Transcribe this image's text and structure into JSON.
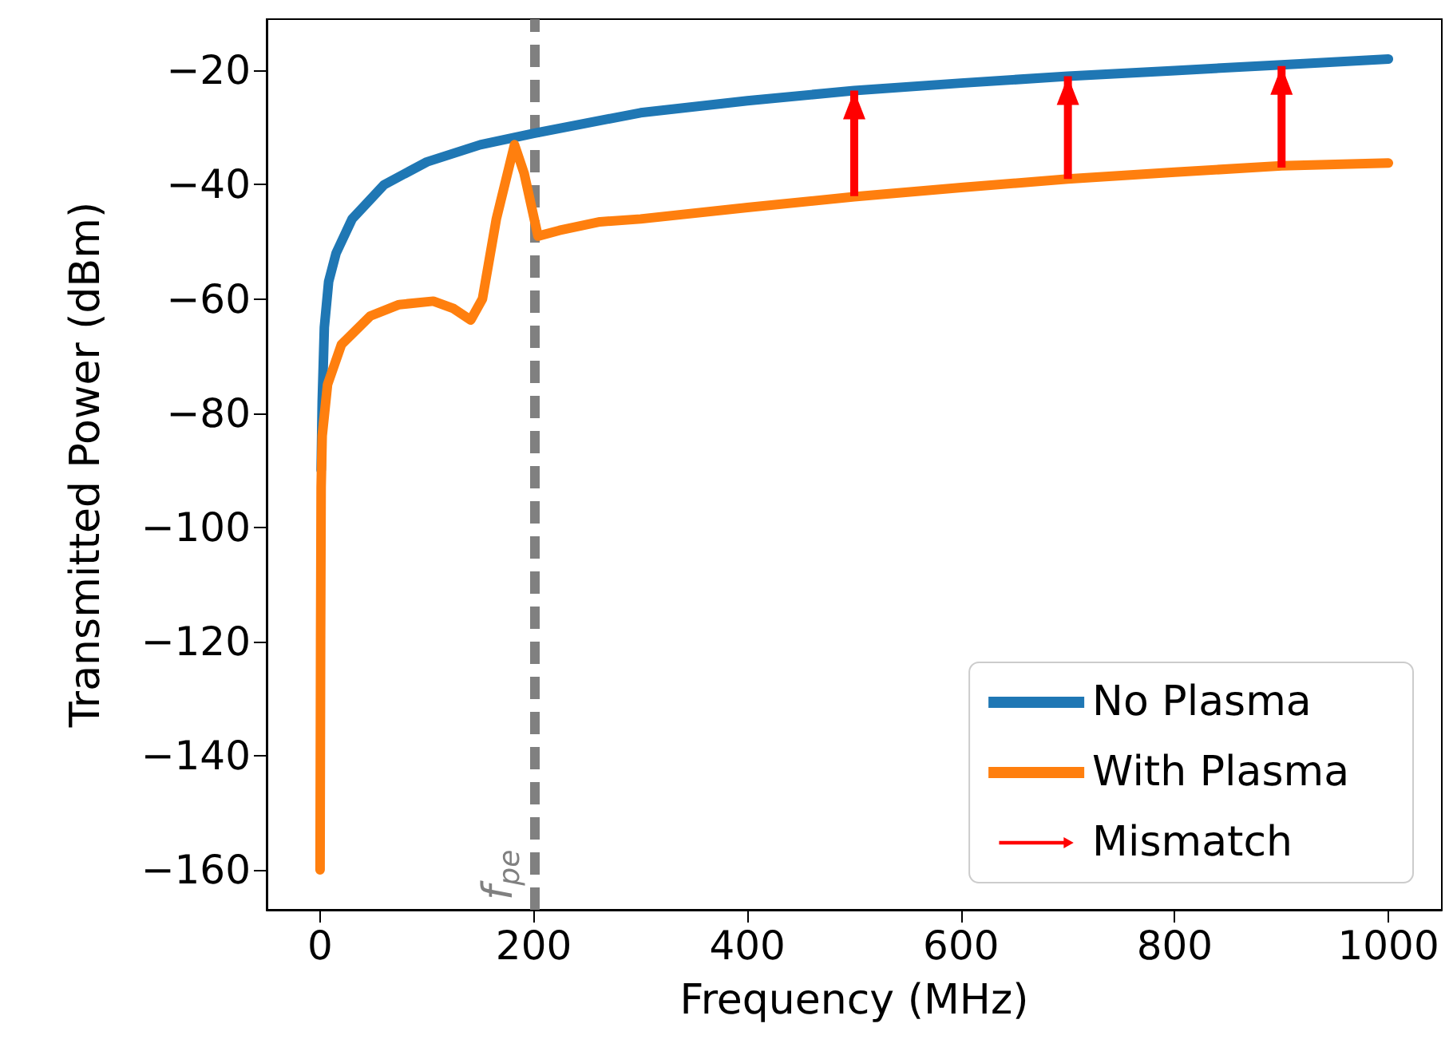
{
  "chart_data": {
    "type": "line",
    "xlabel": "Frequency (MHz)",
    "ylabel": "Transmitted Power (dBm)",
    "xlim": [
      -50,
      1050
    ],
    "xticks": [
      0,
      200,
      400,
      600,
      800,
      1000
    ],
    "ylim": [
      -167,
      -11
    ],
    "yticks": [
      -160,
      -140,
      -120,
      -100,
      -80,
      -60,
      -40,
      -20
    ],
    "grid": false,
    "legend": "bottom right",
    "line_style": "solid",
    "marker": "none",
    "ref_lines": [
      {
        "axis": "x",
        "value": 200,
        "label": "f$_{pe}$",
        "color": "#808080",
        "line_style": "dashed"
      }
    ],
    "series": [
      {
        "name": "No Plasma",
        "color": "#1f77b4",
        "x": [
          1,
          2,
          4,
          8,
          15,
          30,
          60,
          100,
          150,
          200,
          300,
          400,
          500,
          600,
          700,
          800,
          900,
          1000
        ],
        "values": [
          -90,
          -78,
          -65,
          -57,
          -52,
          -46,
          -40,
          -36,
          -33,
          -31,
          -27.4,
          -25.3,
          -23.5,
          -22.2,
          -21,
          -20,
          -19,
          -18
        ]
      },
      {
        "name": "With Plasma",
        "color": "#ff7f0e",
        "x": [
          0,
          0.5,
          1,
          2,
          7,
          20,
          47,
          74,
          106,
          125,
          141,
          152,
          165,
          182,
          191,
          204,
          224,
          262,
          300,
          400,
          500,
          600,
          700,
          800,
          900,
          1000
        ],
        "values": [
          -160,
          -120,
          -93,
          -84,
          -75,
          -68,
          -63,
          -61,
          -60.4,
          -61.7,
          -63.7,
          -60,
          -46,
          -33,
          -38,
          -49,
          -48,
          -46.5,
          -46,
          -44,
          -42.1,
          -40.5,
          -39,
          -37.8,
          -36.7,
          -36.2
        ]
      },
      {
        "name": "Mismatch",
        "type": "bar",
        "color": "#ff0000",
        "x": [
          500,
          700,
          900
        ],
        "base": [
          -42,
          -39,
          -37
        ],
        "values": [
          18.5,
          18,
          17.8
        ]
      }
    ]
  }
}
